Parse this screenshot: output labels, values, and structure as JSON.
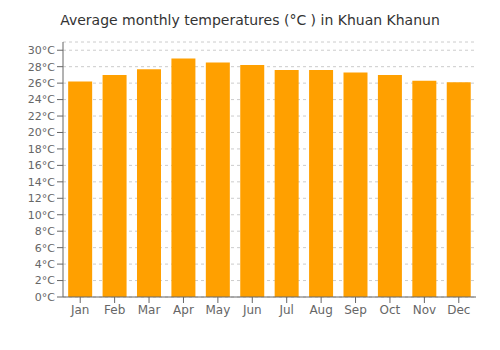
{
  "chart_data": {
    "type": "bar",
    "title": "Average monthly temperatures (°C ) in Khuan Khanun",
    "categories": [
      "Jan",
      "Feb",
      "Mar",
      "Apr",
      "May",
      "Jun",
      "Jul",
      "Aug",
      "Sep",
      "Oct",
      "Nov",
      "Dec"
    ],
    "values": [
      26.2,
      27.0,
      27.7,
      29.0,
      28.5,
      28.2,
      27.6,
      27.6,
      27.3,
      27.0,
      26.3,
      26.1
    ],
    "color": "#FFA000",
    "ylim": [
      0,
      31
    ],
    "yticks": [
      {
        "value": 0,
        "label": "0°C"
      },
      {
        "value": 2,
        "label": "2°C"
      },
      {
        "value": 4,
        "label": "4°C"
      },
      {
        "value": 6,
        "label": "6°C"
      },
      {
        "value": 8,
        "label": "8°C"
      },
      {
        "value": 10,
        "label": "10°C"
      },
      {
        "value": 12,
        "label": "12°C"
      },
      {
        "value": 14,
        "label": "14°C"
      },
      {
        "value": 16,
        "label": "16°C"
      },
      {
        "value": 18,
        "label": "18°C"
      },
      {
        "value": 20,
        "label": "20°C"
      },
      {
        "value": 22,
        "label": "22°C"
      },
      {
        "value": 24,
        "label": "24°C"
      },
      {
        "value": 26,
        "label": "26°C"
      },
      {
        "value": 28,
        "label": "28°C"
      },
      {
        "value": 30,
        "label": "30°C"
      }
    ],
    "grid": true
  }
}
